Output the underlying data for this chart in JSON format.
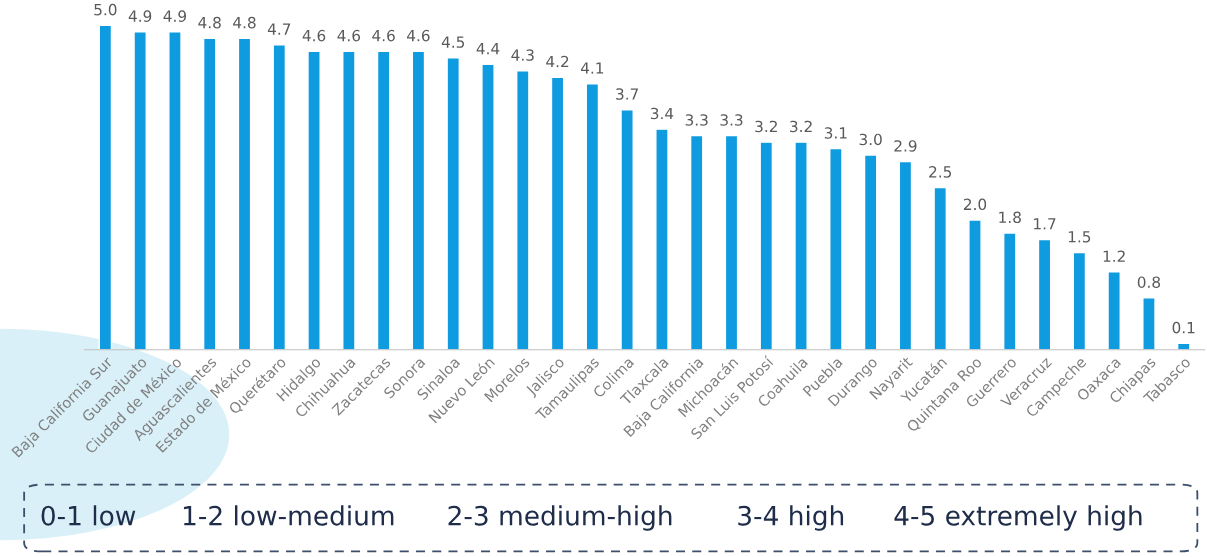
{
  "chart_data": {
    "type": "bar",
    "categories": [
      "Baja California Sur",
      "Guanajuato",
      "Ciudad de México",
      "Aguascalientes",
      "Estado de México",
      "Querétaro",
      "Hidalgo",
      "Chihuahua",
      "Zacatecas",
      "Sonora",
      "Sinaloa",
      "Nuevo León",
      "Morelos",
      "Jalisco",
      "Tamaulipas",
      "Colima",
      "Tlaxcala",
      "Baja California",
      "Michoacán",
      "San Luis Potosí",
      "Coahuila",
      "Puebla",
      "Durango",
      "Nayarit",
      "Yucatán",
      "Quintana Roo",
      "Guerrero",
      "Veracruz",
      "Campeche",
      "Oaxaca",
      "Chiapas",
      "Tabasco"
    ],
    "values": [
      5.0,
      4.9,
      4.9,
      4.8,
      4.8,
      4.7,
      4.6,
      4.6,
      4.6,
      4.6,
      4.5,
      4.4,
      4.3,
      4.2,
      4.1,
      3.7,
      3.4,
      3.3,
      3.3,
      3.2,
      3.2,
      3.1,
      3.0,
      2.9,
      2.5,
      2.0,
      1.8,
      1.7,
      1.5,
      1.2,
      0.8,
      0.1
    ],
    "value_labels": [
      "5.0",
      "4.9",
      "4.9",
      "4.8",
      "4.8",
      "4.7",
      "4.6",
      "4.6",
      "4.6",
      "4.6",
      "4.5",
      "4.4",
      "4.3",
      "4.2",
      "4.1",
      "3.7",
      "3.4",
      "3.3",
      "3.3",
      "3.2",
      "3.2",
      "3.1",
      "3.0",
      "2.9",
      "2.5",
      "2.0",
      "1.8",
      "1.7",
      "1.5",
      "1.2",
      "0.8",
      "0.1"
    ],
    "color": "#0f9be0",
    "annotations": [
      "0-1 low",
      "1-2 low-medium",
      "2-3 medium-high",
      "3-4 high",
      "4-5 extremely high"
    ]
  }
}
